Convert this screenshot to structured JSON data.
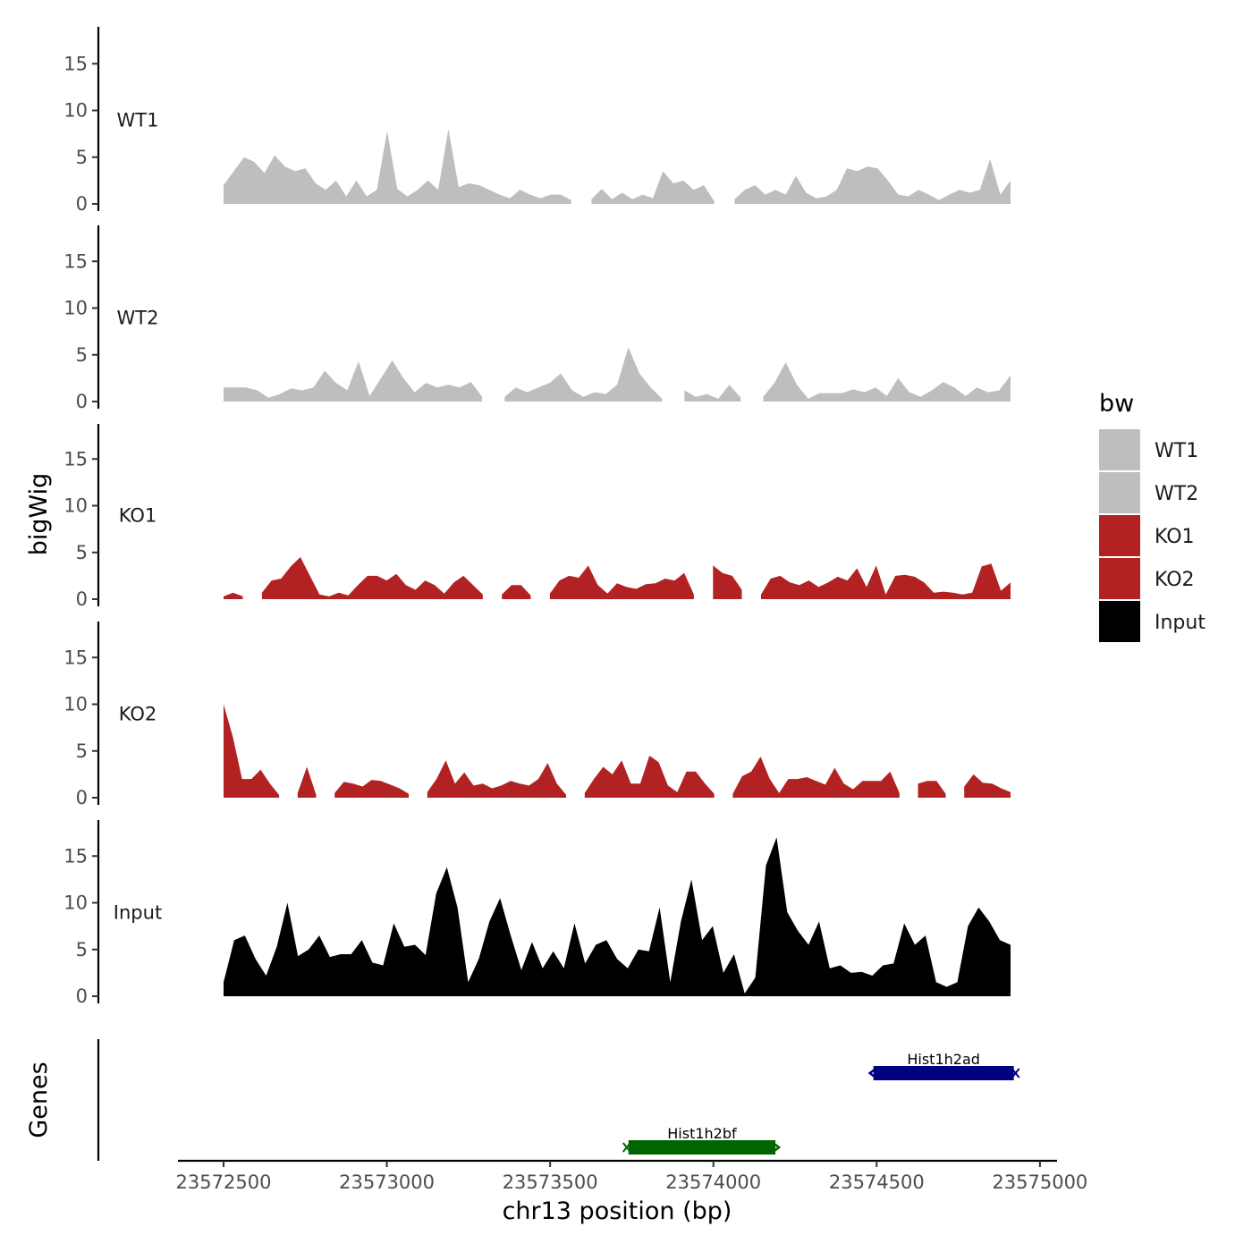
{
  "chart_data": {
    "type": "area",
    "title": "",
    "xlabel": "chr13 position (bp)",
    "ylabel": "bigWig",
    "genes_label": "Genes",
    "xlim": [
      23572500,
      23574910
    ],
    "ylim": [
      0,
      18
    ],
    "x_ticks": [
      23572500,
      23573000,
      23573500,
      23574000,
      23574500,
      23575000
    ],
    "x_tick_labels": [
      "23572500",
      "23573000",
      "23573500",
      "23574000",
      "23574500",
      "23575000"
    ],
    "y_ticks": [
      0,
      5,
      10,
      15
    ],
    "y_tick_labels": [
      "0",
      "5",
      "10",
      "15"
    ],
    "x_step_bp": 25,
    "legend": {
      "title": "bw",
      "position": "right",
      "items": [
        {
          "label": "WT1",
          "color": "#bebebe"
        },
        {
          "label": "WT2",
          "color": "#bebebe"
        },
        {
          "label": "KO1",
          "color": "#b22222"
        },
        {
          "label": "KO2",
          "color": "#b22222"
        },
        {
          "label": "Input",
          "color": "#000000"
        }
      ]
    },
    "series": [
      {
        "name": "WT1",
        "color": "#bebebe",
        "values": [
          2,
          3.5,
          5,
          4.5,
          3.3,
          5.2,
          4,
          3.5,
          3.8,
          2.2,
          1.5,
          2.5,
          0.8,
          2.5,
          0.8,
          1.5,
          7.8,
          1.6,
          0.8,
          1.5,
          2.5,
          1.5,
          8,
          1.8,
          2.2,
          2,
          1.5,
          1,
          0.6,
          1.5,
          1,
          0.6,
          1,
          1,
          0.4,
          null,
          0.5,
          1.6,
          0.5,
          1.2,
          0.5,
          1,
          0.6,
          3.5,
          2.2,
          2.5,
          1.5,
          2,
          0.3,
          null,
          0.5,
          1.5,
          2,
          1,
          1.5,
          1,
          3,
          1.2,
          0.6,
          0.8,
          1.5,
          3.8,
          3.5,
          4,
          3.8,
          2.5,
          1,
          0.8,
          1.5,
          1,
          0.4,
          1,
          1.5,
          1.2,
          1.5,
          4.8,
          1,
          2.5
        ]
      },
      {
        "name": "WT2",
        "color": "#bebebe",
        "values": [
          1.5,
          1.5,
          1.5,
          1.2,
          0.4,
          0.8,
          1.4,
          1.2,
          1.5,
          3.3,
          2,
          1.2,
          4.3,
          0.6,
          2.5,
          4.4,
          2.5,
          1,
          2,
          1.5,
          1.8,
          1.5,
          2.1,
          0.5,
          null,
          0.5,
          1.5,
          1,
          1.5,
          2,
          3,
          1.2,
          0.5,
          1,
          0.8,
          1.8,
          5.8,
          3,
          1.5,
          0.3,
          null,
          1.2,
          0.5,
          0.8,
          0.3,
          1.8,
          0.4,
          null,
          0.5,
          2,
          4.2,
          1.8,
          0.3,
          0.9,
          0.9,
          0.9,
          1.3,
          1,
          1.5,
          0.6,
          2.5,
          1,
          0.5,
          1.2,
          2.1,
          1.5,
          0.6,
          1.5,
          1,
          1.2,
          2.8
        ]
      },
      {
        "name": "KO1",
        "color": "#b22222",
        "values": [
          0.3,
          0.7,
          0.3,
          null,
          0.7,
          2,
          2.2,
          3.5,
          4.5,
          2.5,
          0.5,
          0.3,
          0.7,
          0.4,
          1.5,
          2.5,
          2.5,
          2,
          2.7,
          1.5,
          1,
          2,
          1.5,
          0.6,
          1.8,
          2.5,
          1.5,
          0.5,
          null,
          0.5,
          1.5,
          1.5,
          0.4,
          null,
          0.6,
          2,
          2.5,
          2.3,
          3.6,
          1.5,
          0.6,
          1.7,
          1.3,
          1.1,
          1.6,
          1.7,
          2.2,
          2,
          2.8,
          0.5,
          null,
          3.6,
          2.8,
          2.5,
          1,
          null,
          0.5,
          2.2,
          2.5,
          1.8,
          1.5,
          2,
          1.3,
          1.8,
          2.4,
          2,
          3.3,
          1.3,
          3.6,
          0.5,
          2.5,
          2.6,
          2.4,
          1.8,
          0.7,
          0.8,
          0.7,
          0.5,
          0.7,
          3.5,
          3.8,
          0.9,
          1.8
        ]
      },
      {
        "name": "KO2",
        "color": "#b22222",
        "values": [
          10,
          6.5,
          2,
          2,
          3,
          1.5,
          0.3,
          null,
          0.5,
          3.3,
          0.3,
          null,
          0.5,
          1.7,
          1.5,
          1.2,
          1.9,
          1.8,
          1.4,
          1,
          0.4,
          null,
          0.6,
          2,
          4,
          1.5,
          2.7,
          1.3,
          1.5,
          1,
          1.3,
          1.8,
          1.5,
          1.3,
          2,
          3.7,
          1.5,
          0.3,
          null,
          0.5,
          2,
          3.3,
          2.5,
          4,
          1.5,
          1.5,
          4.5,
          3.8,
          1.3,
          0.6,
          2.8,
          2.8,
          1.5,
          0.4,
          null,
          0.4,
          2.3,
          2.8,
          4.4,
          2,
          0.5,
          2,
          2,
          2.2,
          1.8,
          1.4,
          3.2,
          1.5,
          0.9,
          1.8,
          1.8,
          1.8,
          2.8,
          0.5,
          null,
          1.5,
          1.8,
          1.8,
          0.4,
          null,
          1.2,
          2.5,
          1.6,
          1.5,
          1,
          0.6
        ]
      },
      {
        "name": "Input",
        "color": "#000000",
        "values": [
          1.5,
          6,
          6.5,
          4,
          2.2,
          5.3,
          10,
          4.3,
          5,
          6.5,
          4.2,
          4.5,
          4.5,
          6,
          3.6,
          3.3,
          7.8,
          5.3,
          5.5,
          4.4,
          11,
          13.8,
          9.5,
          1.5,
          4,
          8,
          10.5,
          6.5,
          2.8,
          5.8,
          3,
          4.8,
          3,
          7.8,
          3.5,
          5.5,
          6,
          4,
          3,
          5,
          4.8,
          9.5,
          1.5,
          8,
          12.5,
          6,
          7.5,
          2.5,
          4.5,
          0.3,
          2,
          14,
          17,
          9,
          7,
          5.5,
          8,
          3,
          3.3,
          2.5,
          2.6,
          2.2,
          3.3,
          3.5,
          7.8,
          5.5,
          6.5,
          1.5,
          1,
          1.5,
          7.5,
          9.5,
          8,
          6,
          5.5
        ]
      }
    ],
    "genes": [
      {
        "name": "Hist1h2ad",
        "start": 23574490,
        "end": 23574920,
        "strand": "-",
        "color": "#000080"
      },
      {
        "name": "Hist1h2bf",
        "start": 23573740,
        "end": 23574190,
        "strand": "+",
        "color": "#006400"
      }
    ]
  }
}
